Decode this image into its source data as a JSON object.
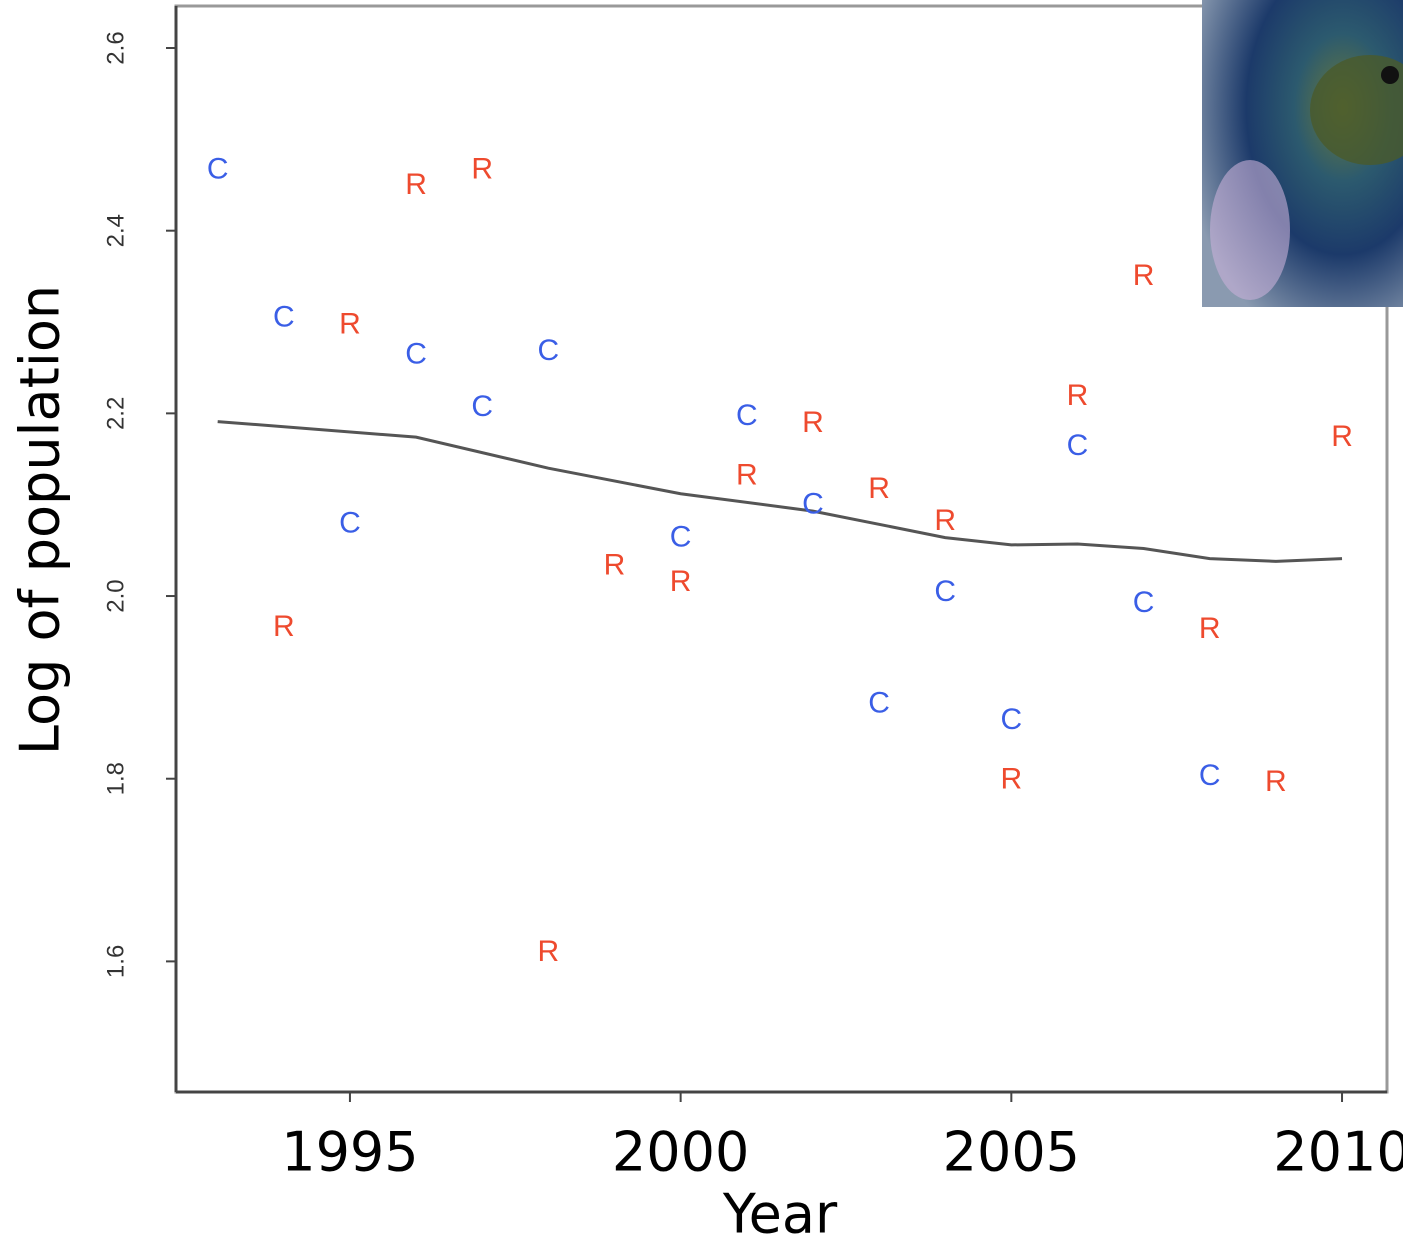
{
  "chart_data": {
    "type": "scatter",
    "xlabel": "Year",
    "ylabel": "Log of population",
    "xlim": [
      1992.37,
      2010.68
    ],
    "ylim": [
      1.457,
      2.646
    ],
    "xticks": [
      1995,
      2000,
      2005,
      2010
    ],
    "yticks": [
      1.6,
      1.8,
      {
        "value": 2,
        "label": "2.0"
      },
      2.2,
      2.4,
      2.6
    ],
    "series": [
      {
        "name": "C",
        "color": "#3a5ee6",
        "x": [
          1993,
          1994,
          1995,
          1996,
          1997,
          1998,
          2000,
          2001,
          2002,
          2003,
          2004,
          2005,
          2006,
          2007,
          2008
        ],
        "values": [
          2.466,
          2.304,
          2.078,
          2.263,
          2.206,
          2.267,
          2.063,
          2.196,
          2.099,
          1.881,
          2.003,
          1.863,
          2.163,
          1.991,
          1.802
        ]
      },
      {
        "name": "R",
        "color": "#ee4a2e",
        "x": [
          1994,
          1995,
          1996,
          1997,
          1998,
          1999,
          2000,
          2001,
          2002,
          2003,
          2004,
          2005,
          2006,
          2007,
          2008,
          2009,
          2010
        ],
        "values": [
          1.965,
          2.296,
          2.449,
          2.466,
          1.609,
          2.032,
          2.014,
          2.131,
          2.188,
          2.116,
          2.081,
          1.798,
          2.218,
          2.349,
          1.963,
          1.795,
          2.173
        ]
      }
    ],
    "trend": {
      "color": "#555555",
      "x": [
        1993,
        1996,
        1998,
        2000,
        2002,
        2004,
        2005,
        2006,
        2007,
        2008,
        2009,
        2010
      ],
      "values": [
        2.191,
        2.174,
        2.14,
        2.112,
        2.093,
        2.064,
        2.056,
        2.057,
        2.052,
        2.041,
        2.038,
        2.041
      ]
    }
  }
}
